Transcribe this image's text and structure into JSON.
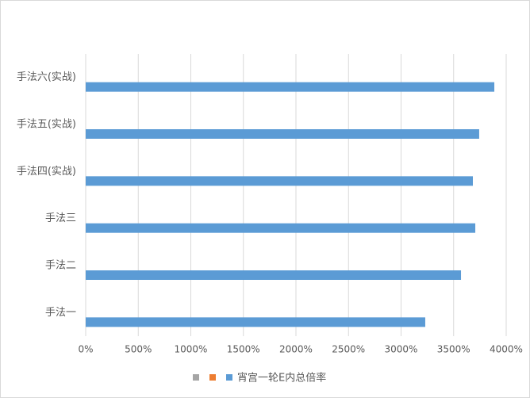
{
  "chart_data": {
    "type": "hbar",
    "categories": [
      "手法一",
      "手法二",
      "手法三",
      "手法四(实战)",
      "手法五(实战)",
      "手法六(实战)"
    ],
    "series": [
      {
        "name": null,
        "color": "#a5a5a5",
        "values": [
          null,
          null,
          null,
          null,
          null,
          null
        ]
      },
      {
        "name": null,
        "color": "#ed7d31",
        "values": [
          null,
          null,
          null,
          null,
          null,
          null
        ]
      },
      {
        "name": "宵宫一轮E内总倍率",
        "color": "#5b9bd5",
        "values": [
          3230,
          3570,
          3706,
          3683,
          3743,
          3887
        ]
      }
    ],
    "xlim": [
      0,
      4000
    ],
    "xticks": [
      {
        "value": 0,
        "label": "0%"
      },
      {
        "value": 500,
        "label": "500%"
      },
      {
        "value": 1000,
        "label": "1000%"
      },
      {
        "value": 1500,
        "label": "1500%"
      },
      {
        "value": 2000,
        "label": "2000%"
      },
      {
        "value": 2500,
        "label": "2500%"
      },
      {
        "value": 3000,
        "label": "3000%"
      },
      {
        "value": 3500,
        "label": "3500%"
      },
      {
        "value": 4000,
        "label": "4000%"
      }
    ],
    "grid": true,
    "legend": "bottom"
  }
}
